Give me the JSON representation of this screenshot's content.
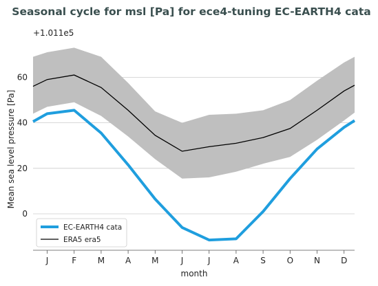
{
  "chart_data": {
    "type": "line",
    "title": "Seasonal cycle for msl [Pa] for ece4-tuning EC-EARTH4 cata",
    "offset_label": "+1.011e5",
    "xlabel": "month",
    "ylabel": "Mean sea level pressure [Pa]",
    "categories": [
      "J",
      "F",
      "M",
      "A",
      "M",
      "J",
      "J",
      "A",
      "S",
      "O",
      "N",
      "D"
    ],
    "yticks": [
      0,
      20,
      40,
      60
    ],
    "ylim": [
      -16,
      74
    ],
    "grid": true,
    "legend_position": "lower-left",
    "series": [
      {
        "name": "EC-EARTH4 cata",
        "kind": "line",
        "color": "#1f9ede",
        "values": [
          44.0,
          45.5,
          35.5,
          21.5,
          6.5,
          -6.0,
          -11.5,
          -11.0,
          1.0,
          15.5,
          28.5,
          38.0
        ]
      },
      {
        "name": "ERA5 era5",
        "kind": "line",
        "color": "#000000",
        "values": [
          59.0,
          61.0,
          55.5,
          45.5,
          34.5,
          27.5,
          29.5,
          31.0,
          33.5,
          37.5,
          45.5,
          54.0
        ]
      }
    ],
    "band": {
      "color": "#bfbfbf",
      "lower": [
        47.0,
        49.0,
        43.0,
        34.0,
        24.0,
        15.5,
        16.0,
        18.5,
        22.0,
        25.0,
        32.5,
        41.0
      ],
      "upper": [
        71.0,
        73.0,
        69.0,
        57.5,
        45.0,
        40.0,
        43.5,
        44.0,
        45.5,
        50.0,
        58.5,
        66.5
      ]
    },
    "edge_values": {
      "model_start": 40.5,
      "model_end": 41.0,
      "ref_start": 56.0,
      "ref_end": 56.5,
      "band_lower_start": 44.0,
      "band_lower_end": 44.5,
      "band_upper_start": 69.0,
      "band_upper_end": 69.0
    }
  }
}
